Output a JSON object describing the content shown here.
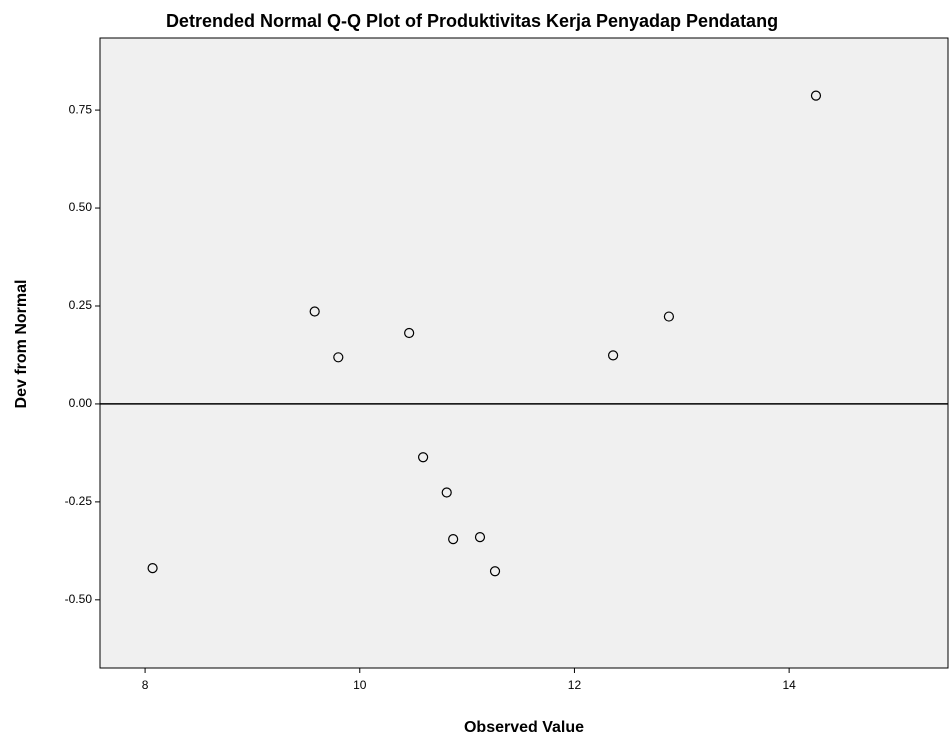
{
  "chart_data": {
    "type": "scatter",
    "title": "Detrended Normal Q-Q Plot of Produktivitas Kerja Penyadap Pendatang",
    "x_label": "Observed Value",
    "y_label": "Dev from Normal",
    "x": [
      8.07,
      9.58,
      9.8,
      10.46,
      10.59,
      10.81,
      10.87,
      11.12,
      11.26,
      12.36,
      12.88,
      14.25
    ],
    "values": [
      -0.419,
      0.236,
      0.119,
      0.181,
      -0.136,
      -0.226,
      -0.345,
      -0.34,
      -0.427,
      0.124,
      0.223,
      0.787
    ],
    "xlim": [
      7.58,
      15.48
    ],
    "ylim": [
      -0.674,
      0.934
    ],
    "xticks": [
      8,
      10,
      12,
      14
    ],
    "yticks": [
      {
        "value": -0.5,
        "label": "-0.50"
      },
      -0.25,
      {
        "value": 0,
        "label": "0.00"
      },
      0.25,
      {
        "value": 0.5,
        "label": "0.50"
      },
      0.75
    ],
    "reference_y": 0,
    "color": "#000000",
    "fill": "#f0f0f0"
  }
}
